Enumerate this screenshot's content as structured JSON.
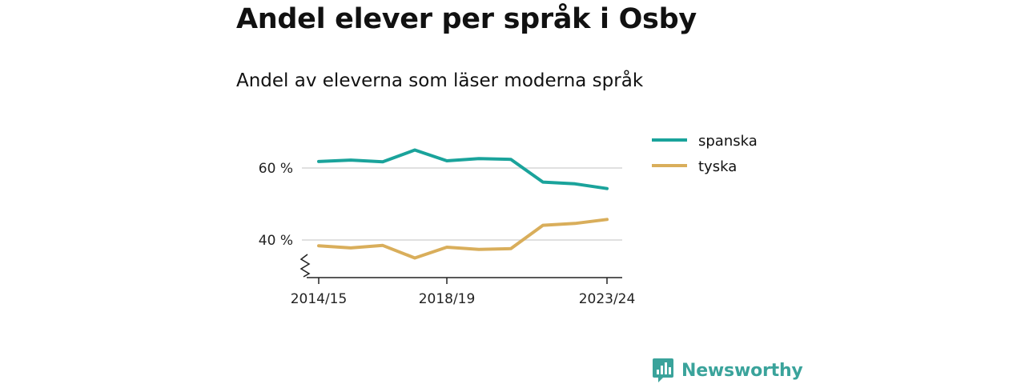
{
  "header": {
    "title": "Andel elever per språk i Osby",
    "subtitle": "Andel av eleverna som läser moderna språk"
  },
  "branding": {
    "name": "Newsworthy",
    "color": "#3aa39b",
    "icon": "newsworthy-logo-icon"
  },
  "chart_data": {
    "type": "line",
    "x": [
      "2014/15",
      "2015/16",
      "2016/17",
      "2017/18",
      "2018/19",
      "2019/20",
      "2020/21",
      "2021/22",
      "2022/23",
      "2023/24"
    ],
    "x_tick_labels": [
      "2014/15",
      "2018/19",
      "2023/24"
    ],
    "y_ticks": [
      40,
      60
    ],
    "y_tick_suffix": " %",
    "ylim": [
      30,
      72
    ],
    "y_axis_break": true,
    "grid": true,
    "legend_position": "top-right",
    "series": [
      {
        "name": "spanska",
        "color": "#1aa39b",
        "values": [
          61.8,
          62.2,
          61.7,
          65.0,
          62.0,
          62.6,
          62.4,
          56.1,
          55.6,
          54.3
        ]
      },
      {
        "name": "tyska",
        "color": "#d9ae5b",
        "values": [
          38.4,
          37.8,
          38.5,
          35.0,
          38.0,
          37.4,
          37.6,
          44.1,
          44.6,
          45.7
        ]
      }
    ]
  }
}
